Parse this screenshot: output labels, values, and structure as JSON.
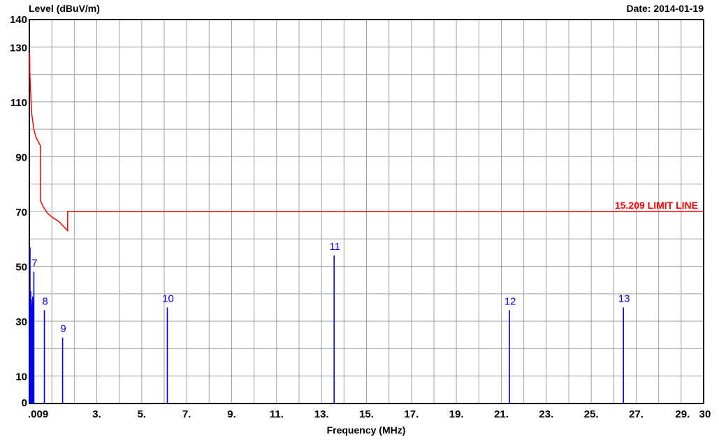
{
  "chart_data": {
    "type": "line",
    "title": "",
    "ylabel": "Level (dBuV/m)",
    "xlabel": "Frequency (MHz)",
    "date_text": "Date: 2014-01-19",
    "xlim": [
      0,
      30
    ],
    "ylim": [
      0,
      140
    ],
    "grid": true,
    "y_ticks": [
      {
        "value": 0,
        "label": "0"
      },
      {
        "value": 10,
        "label": "10"
      },
      {
        "value": 30,
        "label": "30"
      },
      {
        "value": 50,
        "label": "50"
      },
      {
        "value": 70,
        "label": "70"
      },
      {
        "value": 90,
        "label": "90"
      },
      {
        "value": 110,
        "label": "110"
      },
      {
        "value": 130,
        "label": "130"
      },
      {
        "value": 140,
        "label": "140"
      }
    ],
    "y_grid": [
      10,
      20,
      30,
      40,
      50,
      60,
      70,
      80,
      90,
      100,
      110,
      120,
      130
    ],
    "x_ticks": [
      {
        "value": 0.009,
        "label": ".009"
      },
      {
        "value": 3,
        "label": "3."
      },
      {
        "value": 5,
        "label": "5."
      },
      {
        "value": 7,
        "label": "7."
      },
      {
        "value": 9,
        "label": "9."
      },
      {
        "value": 11,
        "label": "11."
      },
      {
        "value": 13,
        "label": "13."
      },
      {
        "value": 15,
        "label": "15."
      },
      {
        "value": 17,
        "label": "17."
      },
      {
        "value": 19,
        "label": "19."
      },
      {
        "value": 21,
        "label": "21."
      },
      {
        "value": 23,
        "label": "23."
      },
      {
        "value": 25,
        "label": "25."
      },
      {
        "value": 27,
        "label": "27."
      },
      {
        "value": 29,
        "label": "29."
      },
      {
        "value": 30,
        "label": "30"
      }
    ],
    "x_grid": [
      1,
      2,
      3,
      4,
      5,
      6,
      7,
      8,
      9,
      10,
      11,
      12,
      13,
      14,
      15,
      16,
      17,
      18,
      19,
      20,
      21,
      22,
      23,
      24,
      25,
      26,
      27,
      28,
      29
    ],
    "limit_line": {
      "name": "15.209 LIMIT LINE",
      "color": "#ff0000",
      "points": [
        [
          0.009,
          128
        ],
        [
          0.02,
          121
        ],
        [
          0.1,
          106
        ],
        [
          0.2,
          100
        ],
        [
          0.3,
          97
        ],
        [
          0.49,
          94
        ],
        [
          0.49,
          74
        ],
        [
          0.6,
          72
        ],
        [
          0.8,
          69.5
        ],
        [
          1.0,
          68
        ],
        [
          1.3,
          66.5
        ],
        [
          1.705,
          63
        ],
        [
          1.705,
          70
        ],
        [
          30,
          70
        ]
      ]
    },
    "markers": {
      "color": "#0000ff",
      "items": [
        {
          "label": "",
          "x": 0.03,
          "y": 57
        },
        {
          "label": "",
          "x": 0.06,
          "y": 41
        },
        {
          "label": "",
          "x": 0.09,
          "y": 38
        },
        {
          "label": "",
          "x": 0.12,
          "y": 36
        },
        {
          "label": "",
          "x": 0.15,
          "y": 39
        },
        {
          "label": "",
          "x": 0.18,
          "y": 37
        },
        {
          "label": "7",
          "x": 0.2,
          "y": 48
        },
        {
          "label": "8",
          "x": 0.67,
          "y": 34
        },
        {
          "label": "9",
          "x": 1.48,
          "y": 24
        },
        {
          "label": "10",
          "x": 6.14,
          "y": 35
        },
        {
          "label": "11",
          "x": 13.56,
          "y": 54
        },
        {
          "label": "12",
          "x": 21.36,
          "y": 34
        },
        {
          "label": "13",
          "x": 26.43,
          "y": 35
        }
      ]
    }
  }
}
